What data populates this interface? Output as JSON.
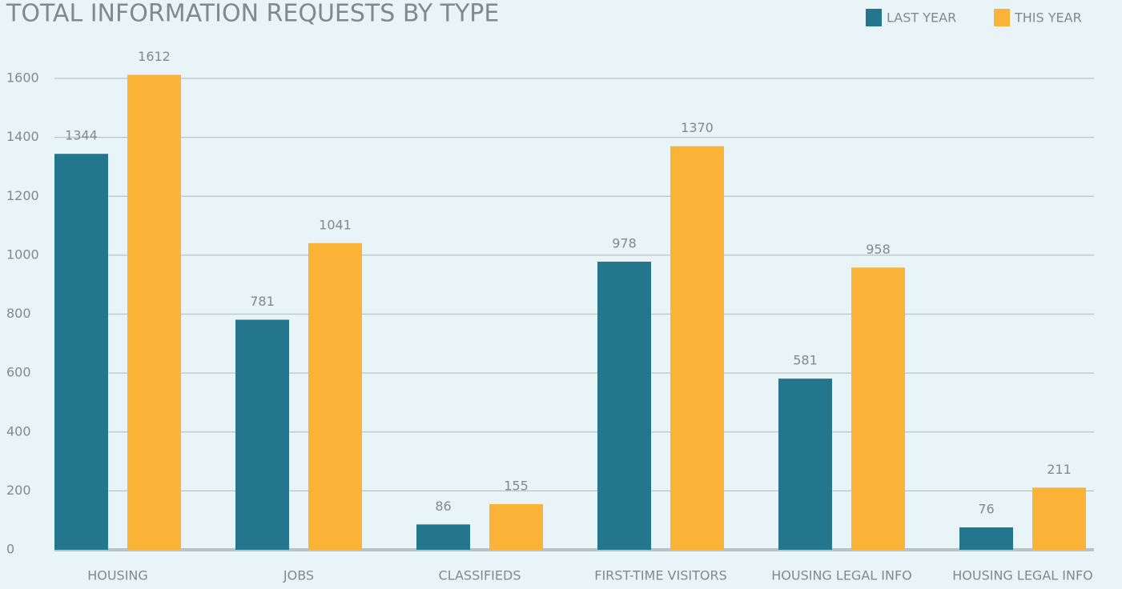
{
  "chart_data": {
    "type": "bar",
    "title": "TOTAL INFORMATION REQUESTS BY TYPE",
    "categories": [
      "HOUSING",
      "JOBS",
      "CLASSIFIEDS",
      "FIRST-TIME VISITORS",
      "HOUSING LEGAL INFO",
      "HOUSING LEGAL INFO"
    ],
    "series": [
      {
        "name": "LAST YEAR",
        "color": "#24768c",
        "values": [
          1344,
          781,
          86,
          978,
          581,
          76
        ]
      },
      {
        "name": "THIS YEAR",
        "color": "#fab336",
        "values": [
          1612,
          1041,
          155,
          1370,
          958,
          211
        ]
      }
    ],
    "ylim": [
      0,
      1700
    ],
    "yticks": [
      0,
      200,
      400,
      600,
      800,
      1000,
      1200,
      1400,
      1600
    ],
    "grid": true,
    "legend": "top-right"
  }
}
